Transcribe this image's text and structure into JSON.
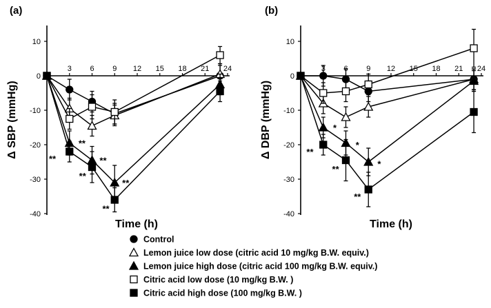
{
  "chart_data": [
    {
      "type": "line",
      "panel": "(a)",
      "ylabel": "Δ SBP (mmHg)",
      "xlabel": "Time (h)",
      "xlim": [
        0,
        24
      ],
      "ylim": [
        -40,
        15
      ],
      "xticks": [
        "3",
        "6",
        "9",
        "12",
        "15",
        "18",
        "21",
        "24"
      ],
      "xtick_values": [
        3,
        6,
        9,
        12,
        15,
        18,
        21,
        24
      ],
      "yticks": [
        "10",
        "0",
        "-10",
        "-20",
        "-30",
        "-40"
      ],
      "ytick_values": [
        10,
        0,
        -10,
        -20,
        -30,
        -40
      ],
      "series": [
        {
          "name": "Control",
          "marker": "circle",
          "filled": true,
          "x": [
            0,
            3,
            6,
            9,
            23
          ],
          "y": [
            0,
            -4,
            -7.5,
            -11,
            0
          ],
          "err": [
            0,
            3,
            3,
            3,
            3
          ]
        },
        {
          "name": "Lemon juice low dose (citric acid 10 mg/kg B.W. equiv.)",
          "marker": "triangle",
          "filled": false,
          "x": [
            0,
            3,
            6,
            9,
            23
          ],
          "y": [
            0,
            -9.5,
            -14.5,
            -11.5,
            0.5
          ],
          "err": [
            0,
            3,
            3,
            3,
            3
          ]
        },
        {
          "name": "Lemon juice high dose (citric acid 100 mg/kg B.W. equiv.)",
          "marker": "triangle",
          "filled": true,
          "x": [
            0,
            3,
            6,
            9,
            23
          ],
          "y": [
            0,
            -19.5,
            -24.5,
            -31,
            -2.5
          ],
          "err": [
            0,
            3.5,
            4,
            5,
            3
          ]
        },
        {
          "name": "Citric acid low dose (10 mg/kg B.W. )",
          "marker": "square",
          "filled": false,
          "x": [
            0,
            3,
            6,
            9,
            23
          ],
          "y": [
            0,
            -12.5,
            -9,
            -10.5,
            6
          ],
          "err": [
            0,
            3,
            3.5,
            3.5,
            2.5
          ]
        },
        {
          "name": "Citric acid high dose (100 mg/kg B.W. )",
          "marker": "square",
          "filled": true,
          "x": [
            0,
            3,
            6,
            9,
            23
          ],
          "y": [
            0,
            -22,
            -26.5,
            -36,
            -4.5
          ],
          "err": [
            0,
            3,
            4.5,
            3.5,
            3
          ]
        }
      ],
      "annotations": [
        {
          "text": "**",
          "x": 1.2,
          "y": -24,
          "anchor": "end"
        },
        {
          "text": "**",
          "x": 4.2,
          "y": -19.5,
          "anchor": "start"
        },
        {
          "text": "**",
          "x": 5.2,
          "y": -29,
          "anchor": "end"
        },
        {
          "text": "**",
          "x": 7.0,
          "y": -24.5,
          "anchor": "start"
        },
        {
          "text": "**",
          "x": 10.0,
          "y": -31,
          "anchor": "start"
        },
        {
          "text": "**",
          "x": 8.3,
          "y": -38.5,
          "anchor": "end"
        }
      ]
    },
    {
      "type": "line",
      "panel": "(b)",
      "ylabel": "Δ DBP (mmHg)",
      "xlabel": "Time (h)",
      "xlim": [
        0,
        24
      ],
      "ylim": [
        -40,
        15
      ],
      "xticks": [
        "3",
        "6",
        "9",
        "12",
        "15",
        "18",
        "21",
        "24"
      ],
      "xtick_values": [
        3,
        6,
        9,
        12,
        15,
        18,
        21,
        24
      ],
      "yticks": [
        "10",
        "0",
        "-10",
        "-20",
        "-30",
        "-40"
      ],
      "ytick_values": [
        10,
        0,
        -10,
        -20,
        -30,
        -40
      ],
      "series": [
        {
          "name": "Control",
          "marker": "circle",
          "filled": true,
          "x": [
            0,
            3,
            6,
            9,
            23
          ],
          "y": [
            0,
            0,
            -1,
            -4.5,
            -1
          ],
          "err": [
            0,
            3,
            3,
            3,
            3
          ]
        },
        {
          "name": "Lemon juice low dose (citric acid 10 mg/kg B.W. equiv.)",
          "marker": "triangle",
          "filled": false,
          "x": [
            0,
            3,
            6,
            9,
            23
          ],
          "y": [
            0,
            -8,
            -12,
            -9,
            -1
          ],
          "err": [
            0,
            3,
            3,
            3,
            3
          ]
        },
        {
          "name": "Lemon juice high dose (citric acid 100 mg/kg B.W. equiv.)",
          "marker": "triangle",
          "filled": true,
          "x": [
            0,
            3,
            6,
            9,
            23
          ],
          "y": [
            0,
            -15,
            -19.5,
            -25,
            -1.5
          ],
          "err": [
            0,
            3,
            3.5,
            4,
            3
          ]
        },
        {
          "name": "Citric acid low dose (10 mg/kg B.W. )",
          "marker": "square",
          "filled": false,
          "x": [
            0,
            3,
            6,
            9,
            23
          ],
          "y": [
            0,
            -5,
            -4.5,
            -2.5,
            8
          ],
          "err": [
            0,
            3,
            3,
            3,
            5.5
          ]
        },
        {
          "name": "Citric acid high dose (100 mg/kg B.W. )",
          "marker": "square",
          "filled": true,
          "x": [
            0,
            3,
            6,
            9,
            23
          ],
          "y": [
            0,
            -20,
            -24.5,
            -33,
            -10.5
          ],
          "err": [
            0,
            3,
            6,
            5,
            6
          ]
        }
      ],
      "annotations": [
        {
          "text": "*",
          "x": 4.3,
          "y": -15,
          "anchor": "start"
        },
        {
          "text": "**",
          "x": 1.7,
          "y": -22,
          "anchor": "end"
        },
        {
          "text": "*",
          "x": 7.3,
          "y": -20,
          "anchor": "start"
        },
        {
          "text": "**",
          "x": 5.1,
          "y": -27,
          "anchor": "end"
        },
        {
          "text": "*",
          "x": 10.2,
          "y": -25.5,
          "anchor": "start"
        },
        {
          "text": "**",
          "x": 8.0,
          "y": -35,
          "anchor": "end"
        }
      ]
    }
  ],
  "legend": [
    {
      "label": "Control",
      "marker": "circle",
      "filled": true
    },
    {
      "label": "Lemon juice low dose (citric acid 10 mg/kg B.W. equiv.)",
      "marker": "triangle",
      "filled": false
    },
    {
      "label": "Lemon juice high dose (citric acid 100 mg/kg B.W. equiv.)",
      "marker": "triangle",
      "filled": true
    },
    {
      "label": "Citric acid low dose (10 mg/kg B.W. )",
      "marker": "square",
      "filled": false
    },
    {
      "label": "Citric acid high dose (100 mg/kg B.W. )",
      "marker": "square",
      "filled": true
    }
  ],
  "colors": {
    "ink": "#000000",
    "background": "#ffffff"
  }
}
